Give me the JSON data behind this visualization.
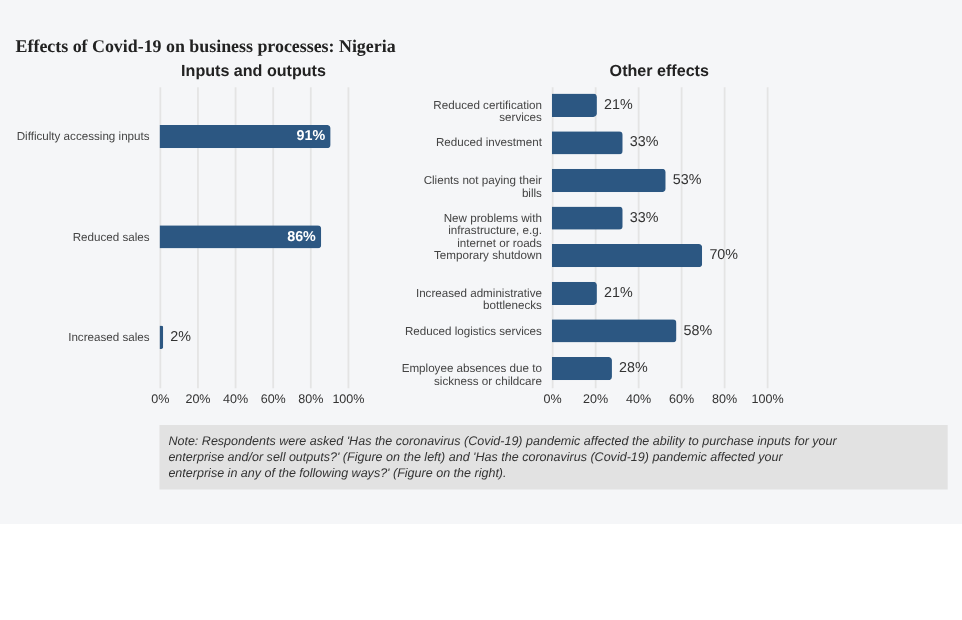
{
  "chart_data": [
    {
      "type": "bar",
      "orientation": "horizontal",
      "title": "Effects of Covid-19 on business processes: Nigeria",
      "subtitle": "Inputs and outputs",
      "categories": [
        "Difficulty accessing inputs",
        "Reduced sales",
        "Increased sales"
      ],
      "values": [
        91,
        86,
        2
      ],
      "value_labels": [
        "91%",
        "86%",
        "2%"
      ],
      "color": "#2c5782",
      "xlim": [
        0,
        100
      ],
      "xticks": [
        {
          "value": 0,
          "label": "0%"
        },
        {
          "value": 20,
          "label": "20%"
        },
        {
          "value": 40,
          "label": "40%"
        },
        {
          "value": 60,
          "label": "60%"
        },
        {
          "value": 80,
          "label": "80%"
        },
        {
          "value": 100,
          "label": "100%"
        }
      ],
      "grid": "x"
    },
    {
      "type": "bar",
      "orientation": "horizontal",
      "title": "Other effects",
      "categories": [
        "Reduced certification services",
        "Reduced investment",
        "Clients not paying their bills",
        "New problems with infrastructure, e.g. internet or roads",
        "Temporary shutdown",
        "Increased administrative bottlenecks",
        "Reduced logistics services",
        "Employee absences due to sickness or childcare"
      ],
      "values": [
        21,
        33,
        53,
        33,
        70,
        21,
        58,
        28
      ],
      "value_labels": [
        "21%",
        "33%",
        "53%",
        "33%",
        "70%",
        "21%",
        "58%",
        "28%"
      ],
      "color": "#2c5782",
      "xlim": [
        0,
        100
      ],
      "xticks": [
        {
          "value": 0,
          "label": "0%"
        },
        {
          "value": 20,
          "label": "20%"
        },
        {
          "value": 40,
          "label": "40%"
        },
        {
          "value": 60,
          "label": "60%"
        },
        {
          "value": 80,
          "label": "80%"
        },
        {
          "value": 100,
          "label": "100%"
        }
      ],
      "grid": "x",
      "annotations": [
        "Note: Respondents were asked 'Has the coronavirus (Covid-19) pandemic affected the ability to purchase inputs for your enterprise and/or sell outputs?' (Figure on the left) and 'Has the coronavirus (Covid-19) pandemic affected your enterprise in any of the following ways?' (Figure on the right)."
      ]
    }
  ]
}
